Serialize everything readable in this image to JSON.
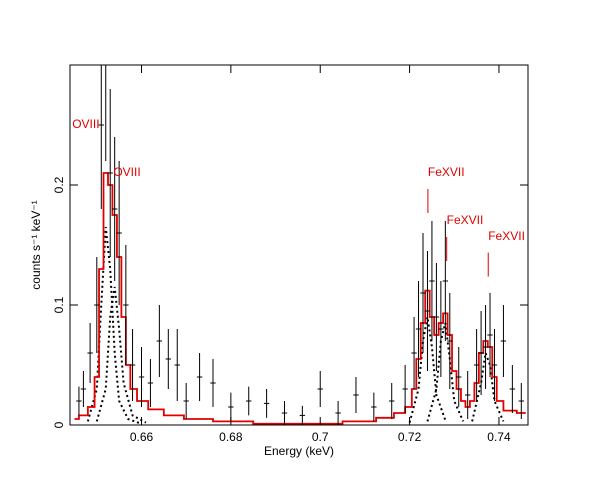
{
  "chart_data": {
    "type": "spectrum",
    "xlabel": "Energy (keV)",
    "ylabel": "counts s⁻¹ keV⁻¹",
    "xlim": [
      0.644,
      0.7465
    ],
    "ylim": [
      0,
      0.3
    ],
    "xticks": [
      0.66,
      0.68,
      0.7,
      0.72,
      0.74
    ],
    "yticks": [
      0,
      0.1,
      0.2
    ],
    "data": {
      "color": "#000000",
      "xerr": 0.0006,
      "x": [
        0.646,
        0.647,
        0.6485,
        0.65,
        0.651,
        0.652,
        0.653,
        0.654,
        0.655,
        0.6565,
        0.658,
        0.66,
        0.662,
        0.664,
        0.666,
        0.668,
        0.67,
        0.673,
        0.676,
        0.68,
        0.684,
        0.688,
        0.692,
        0.696,
        0.7,
        0.704,
        0.708,
        0.712,
        0.716,
        0.719,
        0.721,
        0.722,
        0.723,
        0.724,
        0.725,
        0.726,
        0.727,
        0.728,
        0.729,
        0.731,
        0.733,
        0.735,
        0.736,
        0.737,
        0.738,
        0.739,
        0.741,
        0.743,
        0.745
      ],
      "values": [
        0.02,
        0.03,
        0.06,
        0.1,
        0.25,
        0.3,
        0.21,
        0.18,
        0.16,
        0.1,
        0.05,
        0.04,
        0.035,
        0.07,
        0.055,
        0.05,
        0.02,
        0.04,
        0.035,
        0.015,
        0.02,
        0.018,
        0.01,
        0.008,
        0.03,
        0.01,
        0.025,
        0.015,
        0.02,
        0.03,
        0.06,
        0.08,
        0.11,
        0.095,
        0.12,
        0.09,
        0.08,
        0.12,
        0.07,
        0.04,
        0.025,
        0.05,
        0.06,
        0.065,
        0.075,
        0.05,
        0.07,
        0.03,
        0.02
      ],
      "yerr": [
        0.012,
        0.015,
        0.025,
        0.04,
        0.07,
        0.08,
        0.07,
        0.06,
        0.06,
        0.05,
        0.03,
        0.025,
        0.02,
        0.03,
        0.025,
        0.03,
        0.015,
        0.02,
        0.02,
        0.012,
        0.012,
        0.012,
        0.01,
        0.008,
        0.015,
        0.01,
        0.015,
        0.012,
        0.015,
        0.02,
        0.03,
        0.04,
        0.05,
        0.05,
        0.05,
        0.045,
        0.04,
        0.05,
        0.04,
        0.025,
        0.02,
        0.03,
        0.035,
        0.035,
        0.035,
        0.03,
        0.03,
        0.02,
        0.015
      ]
    },
    "model": {
      "color": "#e00000",
      "x": [
        0.645,
        0.647,
        0.649,
        0.65,
        0.651,
        0.652,
        0.653,
        0.654,
        0.655,
        0.656,
        0.657,
        0.658,
        0.66,
        0.663,
        0.667,
        0.672,
        0.68,
        0.69,
        0.7,
        0.71,
        0.715,
        0.718,
        0.72,
        0.721,
        0.722,
        0.723,
        0.724,
        0.725,
        0.726,
        0.727,
        0.728,
        0.729,
        0.73,
        0.731,
        0.732,
        0.733,
        0.734,
        0.735,
        0.736,
        0.737,
        0.738,
        0.739,
        0.74,
        0.742,
        0.746
      ],
      "values": [
        0.005,
        0.008,
        0.015,
        0.04,
        0.13,
        0.21,
        0.2,
        0.175,
        0.14,
        0.09,
        0.05,
        0.03,
        0.02,
        0.013,
        0.008,
        0.005,
        0.003,
        0.001,
        0.001,
        0.003,
        0.006,
        0.01,
        0.015,
        0.03,
        0.055,
        0.085,
        0.112,
        0.09,
        0.075,
        0.085,
        0.093,
        0.075,
        0.045,
        0.03,
        0.02,
        0.015,
        0.02,
        0.035,
        0.06,
        0.07,
        0.065,
        0.04,
        0.02,
        0.012,
        0.01
      ]
    },
    "components": [
      {
        "x": [
          0.648,
          0.65,
          0.651,
          0.652,
          0.653,
          0.654,
          0.655,
          0.657,
          0.66
        ],
        "values": [
          0.003,
          0.03,
          0.1,
          0.165,
          0.13,
          0.06,
          0.02,
          0.005,
          0.001
        ]
      },
      {
        "x": [
          0.65,
          0.652,
          0.653,
          0.654,
          0.655,
          0.656,
          0.658,
          0.661
        ],
        "values": [
          0.003,
          0.03,
          0.09,
          0.115,
          0.08,
          0.035,
          0.008,
          0.002
        ]
      },
      {
        "x": [
          0.72,
          0.722,
          0.723,
          0.724,
          0.725,
          0.726,
          0.728
        ],
        "values": [
          0.002,
          0.03,
          0.07,
          0.09,
          0.065,
          0.025,
          0.004
        ]
      },
      {
        "x": [
          0.724,
          0.726,
          0.727,
          0.728,
          0.729,
          0.73,
          0.732
        ],
        "values": [
          0.003,
          0.03,
          0.07,
          0.085,
          0.055,
          0.02,
          0.003
        ]
      },
      {
        "x": [
          0.734,
          0.736,
          0.737,
          0.738,
          0.739,
          0.741
        ],
        "values": [
          0.003,
          0.035,
          0.06,
          0.05,
          0.02,
          0.003
        ]
      }
    ],
    "annotations": [
      {
        "text": "OVIII",
        "x": 0.6445,
        "y": 0.25,
        "marker": false
      },
      {
        "text": "OVIII",
        "x": 0.6537,
        "y": 0.21,
        "marker": false
      },
      {
        "text": "FeXVII",
        "x": 0.7241,
        "y": 0.21,
        "marker": true
      },
      {
        "text": "FeXVII",
        "x": 0.7283,
        "y": 0.17,
        "marker": true
      },
      {
        "text": "FeXVII",
        "x": 0.7376,
        "y": 0.157,
        "marker": true
      }
    ]
  }
}
